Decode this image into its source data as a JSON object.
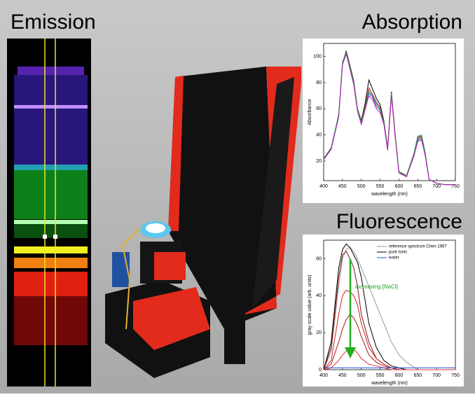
{
  "labels": {
    "emission": "Emission"
  },
  "chart_data": [
    {
      "type": "line",
      "title": "Absorption",
      "ylabel": "Absorbance",
      "xlabel": "wavelength (nm)",
      "x": [
        400,
        420,
        440,
        450,
        460,
        470,
        480,
        490,
        500,
        510,
        520,
        530,
        540,
        550,
        560,
        570,
        580,
        590,
        600,
        620,
        640,
        650,
        660,
        670,
        680,
        700,
        720,
        740,
        750
      ],
      "xlim": [
        400,
        750
      ],
      "xticks": [
        400,
        450,
        500,
        550,
        600,
        650,
        700,
        750
      ],
      "ylim": [
        5,
        110
      ],
      "yticks": [
        20,
        40,
        60,
        80,
        100
      ],
      "series": [
        {
          "color": "#000000",
          "values": [
            22,
            30,
            55,
            95,
            104,
            93,
            81,
            60,
            51,
            64,
            82,
            75,
            68,
            63,
            51,
            30,
            73,
            40,
            12,
            8,
            25,
            38,
            39,
            26,
            6,
            3,
            2,
            2,
            2
          ]
        },
        {
          "color": "#d62020",
          "values": [
            22,
            30,
            55,
            95,
            103,
            92,
            80,
            60,
            50,
            62,
            76,
            71,
            65,
            61,
            50,
            30,
            72,
            40,
            12,
            8,
            25,
            37,
            38,
            25,
            6,
            3,
            2,
            2,
            2
          ]
        },
        {
          "color": "#2040d0",
          "values": [
            21,
            29,
            54,
            94,
            102,
            91,
            79,
            59,
            49,
            60,
            72,
            69,
            62,
            59,
            49,
            29,
            71,
            39,
            11,
            8,
            24,
            36,
            37,
            24,
            6,
            3,
            2,
            2,
            2
          ]
        },
        {
          "color": "#20a040",
          "values": [
            22,
            30,
            56,
            96,
            103,
            92,
            80,
            60,
            50,
            61,
            74,
            70,
            64,
            60,
            50,
            30,
            72,
            40,
            12,
            9,
            26,
            39,
            40,
            26,
            6,
            3,
            2,
            2,
            2
          ]
        },
        {
          "color": "#c020c0",
          "values": [
            21,
            29,
            54,
            94,
            102,
            90,
            78,
            58,
            48,
            59,
            70,
            67,
            60,
            57,
            48,
            28,
            70,
            38,
            11,
            8,
            24,
            35,
            36,
            24,
            6,
            3,
            2,
            2,
            2
          ]
        }
      ]
    },
    {
      "type": "line",
      "title": "Fluorescence",
      "ylabel": "gray scale value (arb. units)",
      "xlabel": "wavelength (nm)",
      "annotation": "increasing [NaCl]",
      "x": [
        400,
        420,
        440,
        450,
        460,
        470,
        480,
        490,
        500,
        520,
        540,
        560,
        580,
        600,
        620,
        650,
        700,
        750
      ],
      "xlim": [
        400,
        750
      ],
      "xticks": [
        400,
        450,
        500,
        550,
        600,
        650,
        700,
        750
      ],
      "ylim": [
        0,
        70
      ],
      "yticks": [
        0,
        20,
        40,
        60
      ],
      "series": [
        {
          "name": "reference spectrum Chen 1967",
          "color": "#999999",
          "values": [
            0,
            10,
            45,
            60,
            65,
            66,
            64,
            60,
            55,
            45,
            35,
            25,
            15,
            8,
            4,
            0,
            0,
            0
          ]
        },
        {
          "name": "pure tonic",
          "color": "#000000",
          "values": [
            0,
            15,
            55,
            65,
            68,
            66,
            62,
            58,
            50,
            25,
            12,
            5,
            2,
            1,
            0,
            0,
            0,
            0
          ]
        },
        {
          "color": "#801010",
          "values": [
            0,
            12,
            50,
            62,
            64,
            60,
            55,
            45,
            30,
            15,
            6,
            3,
            1,
            0,
            0,
            0,
            0,
            0
          ]
        },
        {
          "color": "#d02020",
          "values": [
            0,
            5,
            30,
            40,
            43,
            42,
            40,
            35,
            25,
            12,
            6,
            3,
            1,
            0,
            0,
            0,
            0,
            0
          ]
        },
        {
          "color": "#a01818",
          "values": [
            0,
            3,
            15,
            22,
            27,
            30,
            28,
            24,
            18,
            8,
            4,
            2,
            1,
            0,
            0,
            0,
            0,
            0
          ]
        },
        {
          "color": "#e03030",
          "values": [
            0,
            1,
            5,
            8,
            10,
            12,
            11,
            9,
            6,
            3,
            2,
            1,
            0,
            0,
            0,
            0,
            0,
            0
          ]
        },
        {
          "name": "water",
          "color": "#2050e0",
          "values": [
            1,
            1,
            1,
            1,
            1,
            1,
            1,
            1,
            1,
            1,
            1,
            1,
            1,
            1,
            1,
            1,
            1,
            1
          ]
        }
      ]
    }
  ]
}
